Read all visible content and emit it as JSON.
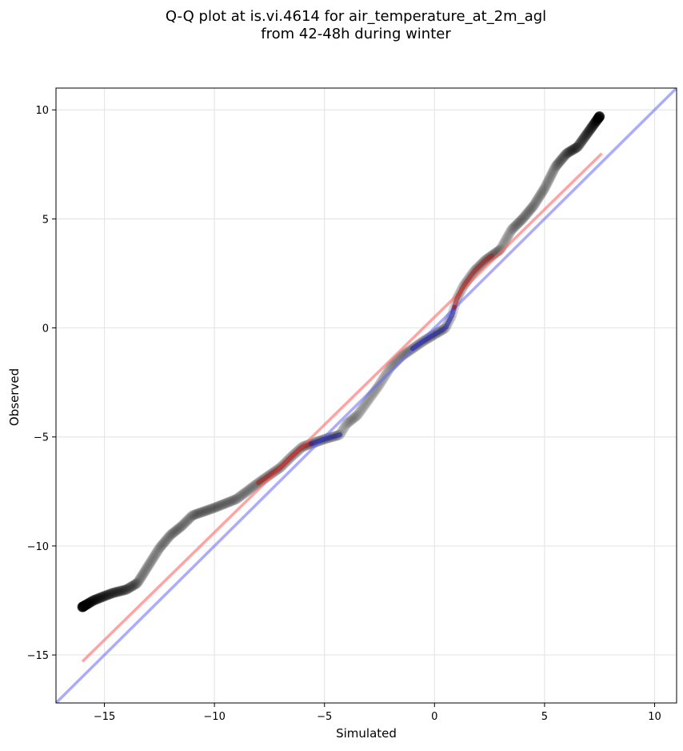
{
  "chart_data": {
    "type": "scatter",
    "title": "Q-Q plot at is.vi.4614 for air_temperature_at_2m_agl",
    "subtitle": "from 42-48h during winter",
    "xlabel": "Simulated",
    "ylabel": "Observed",
    "xlim": [
      -17.2,
      11.0
    ],
    "ylim": [
      -17.2,
      11.0
    ],
    "xticks": [
      -15,
      -10,
      -5,
      0,
      5,
      10
    ],
    "yticks": [
      -15,
      -10,
      -5,
      0,
      5,
      10
    ],
    "xtick_labels": [
      "−15",
      "−10",
      "−5",
      "0",
      "5",
      "10"
    ],
    "ytick_labels": [
      "−15",
      "−10",
      "−5",
      "0",
      "5",
      "10"
    ],
    "grid": true,
    "series": [
      {
        "kind": "quantile-points",
        "color": "#000000",
        "points": [
          [
            -16.0,
            -12.8
          ],
          [
            -15.5,
            -12.5
          ],
          [
            -15.0,
            -12.3
          ],
          [
            -14.6,
            -12.15
          ],
          [
            -14.0,
            -12.0
          ],
          [
            -13.5,
            -11.7
          ],
          [
            -13.0,
            -10.9
          ],
          [
            -12.5,
            -10.1
          ],
          [
            -12.0,
            -9.5
          ],
          [
            -11.5,
            -9.1
          ],
          [
            -11.0,
            -8.6
          ],
          [
            -10.0,
            -8.25
          ],
          [
            -9.0,
            -7.85
          ],
          [
            -8.0,
            -7.1
          ],
          [
            -7.0,
            -6.4
          ],
          [
            -6.5,
            -5.9
          ],
          [
            -6.0,
            -5.45
          ],
          [
            -5.0,
            -5.1
          ],
          [
            -4.3,
            -4.9
          ],
          [
            -4.0,
            -4.4
          ],
          [
            -3.5,
            -4.0
          ],
          [
            -3.0,
            -3.3
          ],
          [
            -2.5,
            -2.6
          ],
          [
            -2.0,
            -1.8
          ],
          [
            -1.5,
            -1.3
          ],
          [
            -1.0,
            -0.95
          ],
          [
            -0.5,
            -0.6
          ],
          [
            0.0,
            -0.3
          ],
          [
            0.5,
            0.0
          ],
          [
            0.8,
            0.6
          ],
          [
            1.0,
            1.3
          ],
          [
            1.3,
            1.9
          ],
          [
            1.8,
            2.6
          ],
          [
            2.3,
            3.1
          ],
          [
            3.0,
            3.6
          ],
          [
            3.5,
            4.5
          ],
          [
            4.0,
            5.0
          ],
          [
            4.5,
            5.6
          ],
          [
            5.0,
            6.4
          ],
          [
            5.5,
            7.4
          ],
          [
            6.0,
            8.0
          ],
          [
            6.5,
            8.3
          ],
          [
            7.0,
            9.0
          ],
          [
            7.5,
            9.7
          ]
        ]
      },
      {
        "kind": "reference-line",
        "name": "",
        "color": "#ff6666",
        "x": [
          -16.0,
          7.6
        ],
        "y": [
          -15.3,
          8.0
        ]
      },
      {
        "kind": "identity-line",
        "name": "",
        "color": "#6666ff",
        "x": [
          -17.2,
          11.0
        ],
        "y": [
          -17.2,
          11.0
        ]
      }
    ],
    "overlays": [
      {
        "name": "red-overlay-low",
        "color": "#b31515",
        "x": [
          -8.0,
          -5.6
        ]
      },
      {
        "name": "blue-overlay-mid",
        "color": "#1a1ab3",
        "x": [
          -5.6,
          -4.3
        ]
      },
      {
        "name": "blue-overlay-center",
        "color": "#1a1ab3",
        "x": [
          -1.0,
          0.9
        ]
      },
      {
        "name": "red-overlay-high",
        "color": "#b31515",
        "x": [
          0.9,
          2.6
        ]
      }
    ]
  }
}
